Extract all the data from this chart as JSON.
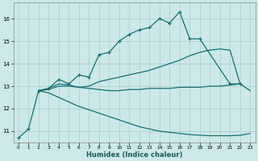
{
  "xlabel": "Humidex (Indice chaleur)",
  "bg_color": "#cce8e8",
  "grid_color": "#aacccc",
  "line_color": "#1a6e6e",
  "xlim": [
    -0.5,
    23.5
  ],
  "ylim": [
    10.5,
    16.7
  ],
  "yticks": [
    11,
    12,
    13,
    14,
    15,
    16
  ],
  "xticks": [
    0,
    1,
    2,
    3,
    4,
    5,
    6,
    7,
    8,
    9,
    10,
    11,
    12,
    13,
    14,
    15,
    16,
    17,
    18,
    19,
    20,
    21,
    22,
    23
  ],
  "lines": [
    {
      "x": [
        0,
        1,
        2,
        3,
        4,
        5,
        6,
        7,
        8,
        9,
        10,
        11,
        12,
        13,
        14,
        15,
        16,
        17,
        18,
        21,
        22
      ],
      "y": [
        10.7,
        11.1,
        12.8,
        12.9,
        13.3,
        13.1,
        13.5,
        13.4,
        14.4,
        14.5,
        15.0,
        15.3,
        15.5,
        15.6,
        16.0,
        15.8,
        16.3,
        15.1,
        15.1,
        13.1,
        13.1
      ],
      "marker": true
    },
    {
      "x": [
        2,
        3,
        4,
        5,
        6,
        7,
        8,
        9,
        10,
        11,
        12,
        13,
        14,
        15,
        16,
        17,
        18,
        19,
        20,
        21,
        22
      ],
      "y": [
        12.8,
        12.9,
        13.1,
        13.05,
        12.95,
        13.0,
        13.2,
        13.3,
        13.4,
        13.5,
        13.6,
        13.7,
        13.85,
        14.0,
        14.15,
        14.35,
        14.5,
        14.6,
        14.65,
        14.6,
        13.1
      ],
      "marker": false
    },
    {
      "x": [
        2,
        3,
        4,
        5,
        6,
        7,
        8,
        9,
        10,
        11,
        12,
        13,
        14,
        15,
        16,
        17,
        18,
        19,
        20,
        21,
        22,
        23
      ],
      "y": [
        12.8,
        12.85,
        13.0,
        13.0,
        12.95,
        12.9,
        12.85,
        12.8,
        12.8,
        12.85,
        12.85,
        12.9,
        12.9,
        12.9,
        12.95,
        12.95,
        12.95,
        13.0,
        13.0,
        13.05,
        13.1,
        12.8
      ],
      "marker": false
    },
    {
      "x": [
        2,
        3,
        4,
        5,
        6,
        7,
        8,
        9,
        10,
        11,
        12,
        13,
        14,
        15,
        16,
        17,
        18,
        19,
        20,
        21,
        22,
        23
      ],
      "y": [
        12.8,
        12.7,
        12.5,
        12.3,
        12.1,
        11.95,
        11.8,
        11.65,
        11.5,
        11.35,
        11.2,
        11.1,
        11.0,
        10.95,
        10.9,
        10.85,
        10.82,
        10.8,
        10.8,
        10.8,
        10.82,
        10.9
      ],
      "marker": false
    }
  ]
}
